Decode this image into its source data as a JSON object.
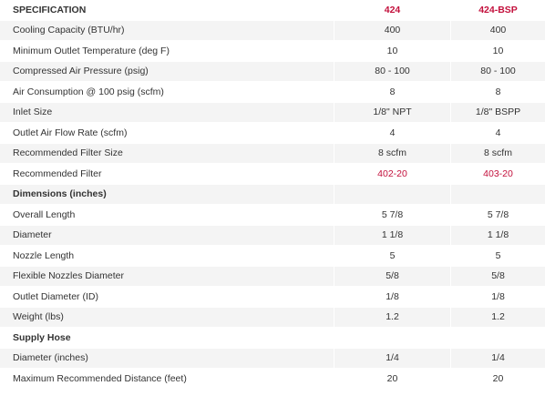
{
  "header": {
    "specification": "SPECIFICATION",
    "model_a": "424",
    "model_b": "424-BSP"
  },
  "rows": [
    {
      "label": "Cooling Capacity (BTU/hr)",
      "a": "400",
      "b": "400"
    },
    {
      "label": "Minimum Outlet Temperature (deg F)",
      "a": "10",
      "b": "10"
    },
    {
      "label": "Compressed Air Pressure (psig)",
      "a": "80 - 100",
      "b": "80 - 100"
    },
    {
      "label": "Air Consumption @ 100 psig (scfm)",
      "a": "8",
      "b": "8"
    },
    {
      "label": "Inlet Size",
      "a": "1/8\" NPT",
      "b": "1/8\" BSPP"
    },
    {
      "label": "Outlet Air Flow Rate (scfm)",
      "a": "4",
      "b": "4"
    },
    {
      "label": "Recommended Filter Size",
      "a": "8 scfm",
      "b": "8 scfm"
    },
    {
      "label": "Recommended Filter",
      "a": "402-20",
      "b": "403-20"
    }
  ],
  "dimensions": {
    "title": "Dimensions (inches)",
    "rows": [
      {
        "label": "Overall Length",
        "a": "5 7/8",
        "b": "5 7/8"
      },
      {
        "label": "Diameter",
        "a": "1 1/8",
        "b": "1 1/8"
      },
      {
        "label": "Nozzle Length",
        "a": "5",
        "b": "5"
      },
      {
        "label": "Flexible Nozzles Diameter",
        "a": "5/8",
        "b": "5/8"
      },
      {
        "label": "Outlet Diameter (ID)",
        "a": "1/8",
        "b": "1/8"
      },
      {
        "label": "Weight (lbs)",
        "a": "1.2",
        "b": "1.2"
      }
    ]
  },
  "supply_hose": {
    "title": "Supply Hose",
    "rows": [
      {
        "label": "Diameter (inches)",
        "a": "1/4",
        "b": "1/4"
      },
      {
        "label": "Maximum Recommended Distance (feet)",
        "a": "20",
        "b": "20"
      }
    ]
  },
  "colors": {
    "accent": "#c3103c",
    "stripe": "#f4f4f4",
    "text": "#333333"
  }
}
